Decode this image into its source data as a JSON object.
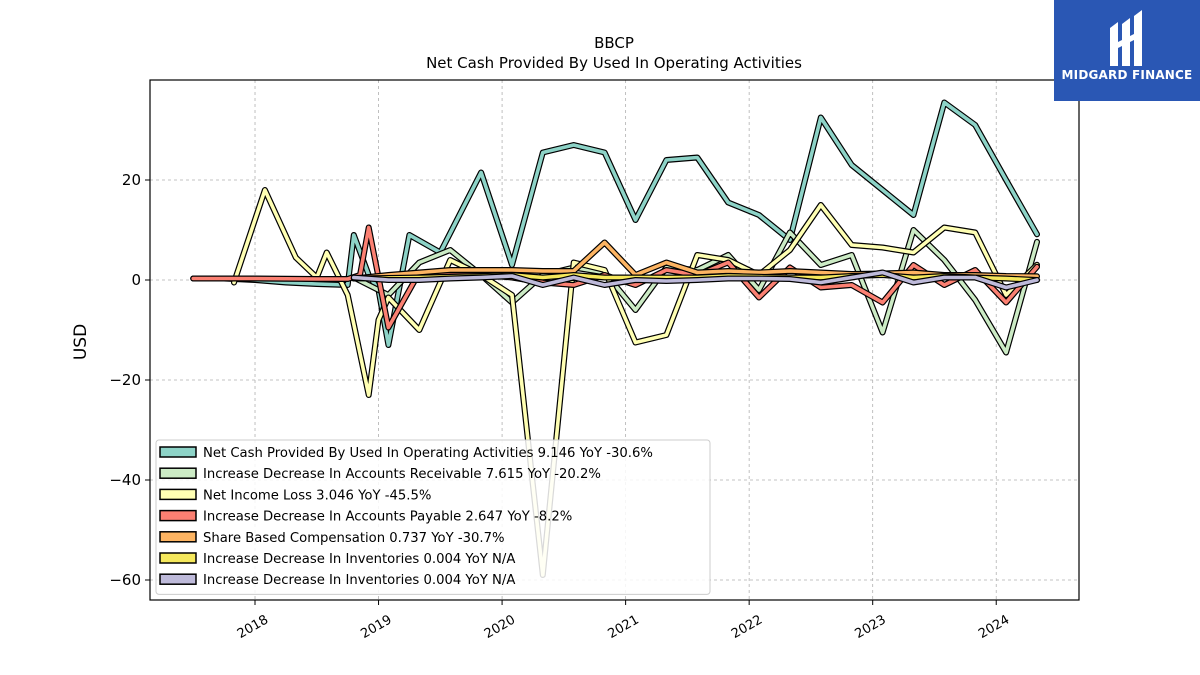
{
  "chart_data": {
    "type": "line",
    "title": "BBCP",
    "subtitle": "Net Cash Provided By Used In Operating Activities",
    "ylabel": "USD",
    "xlabel": "",
    "x_ticks": [
      "2018",
      "2019",
      "2020",
      "2021",
      "2022",
      "2023",
      "2024"
    ],
    "y_ticks": [
      20,
      0,
      -20,
      -40,
      -60
    ],
    "ylim": [
      -64,
      40
    ],
    "xlim": [
      2017.15,
      2024.67
    ],
    "grid": true,
    "legend_position": "lower-left",
    "series": [
      {
        "name": "Net Cash Provided By Used In Operating Activities",
        "legend": "Net Cash Provided By Used In Operating Activities  9.146 YoY -30.6%",
        "color": "#8dd3c7",
        "x": [
          2017.5,
          2017.75,
          2018.0,
          2018.25,
          2018.5,
          2018.75,
          2018.8,
          2018.92,
          2019.0,
          2019.08,
          2019.25,
          2019.5,
          2019.83,
          2020.08,
          2020.33,
          2020.58,
          2020.83,
          2021.08,
          2021.33,
          2021.58,
          2021.83,
          2022.08,
          2022.33,
          2022.58,
          2022.83,
          2023.08,
          2023.33,
          2023.58,
          2023.83,
          2024.08,
          2024.33
        ],
        "y": [
          0.3,
          0.3,
          0.0,
          -0.5,
          -0.8,
          -1.0,
          9.0,
          1.0,
          -2.0,
          -13.0,
          9.0,
          5.5,
          21.5,
          3.0,
          25.5,
          27.0,
          25.5,
          12.0,
          24.0,
          24.5,
          15.5,
          13.0,
          8.0,
          32.5,
          23.0,
          18.0,
          13.0,
          35.5,
          31.0,
          20.0,
          9.146
        ]
      },
      {
        "name": "Increase Decrease In Accounts Receivable",
        "legend": "Increase Decrease In Accounts Receivable  7.615 YoY -20.2%",
        "color": "#ccebc5",
        "x": [
          2018.8,
          2019.08,
          2019.33,
          2019.58,
          2019.83,
          2020.08,
          2020.33,
          2020.58,
          2020.83,
          2021.08,
          2021.33,
          2021.58,
          2021.83,
          2022.08,
          2022.33,
          2022.58,
          2022.83,
          2023.08,
          2023.33,
          2023.58,
          2023.83,
          2024.08,
          2024.33
        ],
        "y": [
          0.5,
          -3.0,
          3.5,
          6.0,
          1.0,
          -4.5,
          1.0,
          2.5,
          1.5,
          -6.0,
          2.5,
          2.0,
          5.0,
          -2.0,
          9.5,
          3.0,
          5.0,
          -10.5,
          10.0,
          4.0,
          -4.0,
          -14.5,
          7.615
        ]
      },
      {
        "name": "Net Income Loss",
        "legend": "Net Income Loss  3.046 YoY -45.5%",
        "color": "#ffffb3",
        "x": [
          2017.83,
          2018.08,
          2018.33,
          2018.5,
          2018.58,
          2018.75,
          2018.92,
          2019.0,
          2019.08,
          2019.33,
          2019.58,
          2019.83,
          2020.08,
          2020.33,
          2020.58,
          2020.83,
          2021.08,
          2021.33,
          2021.58,
          2021.83,
          2022.08,
          2022.33,
          2022.58,
          2022.83,
          2023.08,
          2023.33,
          2023.58,
          2023.83,
          2024.08,
          2024.33
        ],
        "y": [
          -0.5,
          18.0,
          4.5,
          0.5,
          5.5,
          -3.0,
          -23.0,
          -8.0,
          -3.5,
          -10.0,
          4.0,
          1.0,
          -3.0,
          -59.0,
          3.5,
          2.0,
          -12.5,
          -11.0,
          5.0,
          4.0,
          1.0,
          6.0,
          15.0,
          7.0,
          6.5,
          5.5,
          10.5,
          9.5,
          -3.0,
          3.046
        ]
      },
      {
        "name": "Increase Decrease In Accounts Payable",
        "legend": "Increase Decrease In Accounts Payable  2.647 YoY -8.2%",
        "color": "#fb8072",
        "x": [
          2017.5,
          2018.0,
          2018.5,
          2018.75,
          2018.85,
          2018.92,
          2019.08,
          2019.33,
          2019.58,
          2019.83,
          2020.08,
          2020.33,
          2020.58,
          2020.83,
          2021.08,
          2021.33,
          2021.58,
          2021.83,
          2022.08,
          2022.33,
          2022.58,
          2022.83,
          2023.08,
          2023.33,
          2023.58,
          2023.83,
          2024.08,
          2024.33
        ],
        "y": [
          0.3,
          0.3,
          0.2,
          0.2,
          1.0,
          10.5,
          -9.5,
          1.5,
          1.0,
          1.0,
          0.5,
          -0.5,
          -1.0,
          1.0,
          -1.0,
          2.0,
          1.0,
          3.5,
          -3.5,
          2.5,
          -1.5,
          -1.0,
          -4.5,
          3.0,
          -1.0,
          2.0,
          -4.5,
          2.647
        ]
      },
      {
        "name": "Share Based Compensation",
        "legend": "Share Based Compensation  0.737 YoY -30.7%",
        "color": "#fdb462",
        "x": [
          2018.8,
          2019.08,
          2019.33,
          2019.58,
          2019.83,
          2020.08,
          2020.33,
          2020.58,
          2020.83,
          2021.08,
          2021.33,
          2021.58,
          2021.83,
          2022.08,
          2022.33,
          2022.58,
          2022.83,
          2023.08,
          2023.33,
          2023.58,
          2023.83,
          2024.08,
          2024.33
        ],
        "y": [
          0.3,
          1.0,
          1.5,
          2.0,
          2.0,
          2.0,
          1.8,
          1.8,
          7.5,
          1.0,
          3.5,
          1.5,
          1.8,
          1.5,
          1.8,
          1.5,
          1.2,
          1.3,
          1.5,
          1.0,
          1.0,
          0.8,
          0.737
        ]
      },
      {
        "name": "Increase Decrease In Inventories",
        "legend": "Increase Decrease In Inventories  0.004 YoY N/A",
        "color": "#f5e85c",
        "x": [
          2018.8,
          2019.33,
          2019.83,
          2020.08,
          2020.33,
          2020.58,
          2020.83,
          2021.08,
          2021.58,
          2021.83,
          2022.33,
          2022.58,
          2022.83,
          2023.08,
          2023.33,
          2023.58,
          2023.83,
          2024.08,
          2024.33
        ],
        "y": [
          0.3,
          0.5,
          0.8,
          1.0,
          0.5,
          1.0,
          0.5,
          0.5,
          0.5,
          0.8,
          0.5,
          0.5,
          0.8,
          1.0,
          0.5,
          0.8,
          0.5,
          0.3,
          0.004
        ]
      },
      {
        "name": "Increase Decrease In Inventories",
        "legend": "Increase Decrease In Inventories  0.004 YoY N/A",
        "color": "#bebada",
        "x": [
          2018.8,
          2019.08,
          2019.33,
          2019.58,
          2019.83,
          2020.08,
          2020.33,
          2020.58,
          2020.83,
          2021.08,
          2021.33,
          2021.58,
          2021.83,
          2022.08,
          2022.33,
          2022.58,
          2022.83,
          2023.08,
          2023.33,
          2023.58,
          2023.83,
          2024.08,
          2024.33
        ],
        "y": [
          0.5,
          0.0,
          0.0,
          0.3,
          0.5,
          0.8,
          -1.0,
          0.5,
          -1.0,
          0.0,
          -0.2,
          0.0,
          0.3,
          0.3,
          0.2,
          -0.5,
          0.5,
          1.5,
          -0.5,
          0.5,
          0.5,
          -1.5,
          0.004
        ]
      }
    ]
  },
  "logo": {
    "text": "MIDGARD FINANCE"
  }
}
